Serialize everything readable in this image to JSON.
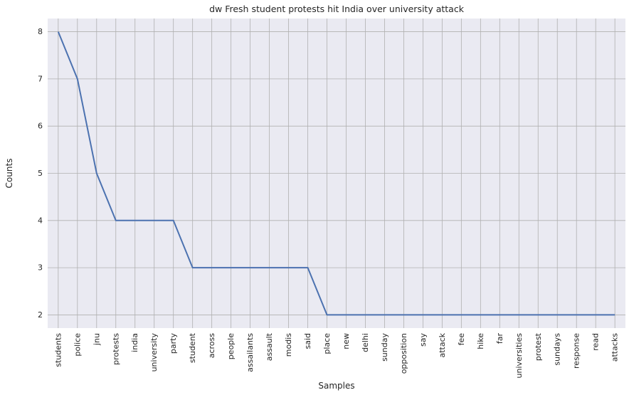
{
  "chart_data": {
    "type": "line",
    "title": "dw Fresh student protests hit India over university attack",
    "xlabel": "Samples",
    "ylabel": "Counts",
    "categories": [
      "students",
      "police",
      "jnu",
      "protests",
      "india",
      "university",
      "party",
      "student",
      "across",
      "people",
      "assailants",
      "assault",
      "modis",
      "said",
      "place",
      "new",
      "delhi",
      "sunday",
      "opposition",
      "say",
      "attack",
      "fee",
      "hike",
      "far",
      "universities",
      "protest",
      "sundays",
      "response",
      "read",
      "attacks"
    ],
    "values": [
      8,
      7,
      5,
      4,
      4,
      4,
      4,
      3,
      3,
      3,
      3,
      3,
      3,
      3,
      2,
      2,
      2,
      2,
      2,
      2,
      2,
      2,
      2,
      2,
      2,
      2,
      2,
      2,
      2,
      2
    ],
    "ylim": [
      1.72,
      8.28
    ],
    "yticks": [
      2,
      3,
      4,
      5,
      6,
      7,
      8
    ],
    "grid": true,
    "colors": {
      "line": "#4c72b0",
      "background": "#eaeaf2",
      "grid": "#b0b0b0"
    }
  }
}
